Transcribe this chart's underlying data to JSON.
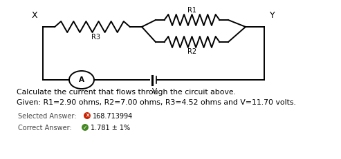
{
  "bg_color": "#ffffff",
  "text_color": "#000000",
  "line1": "Calculate the current that flows through the circuit above.",
  "line2": "Given: R1=2.90 ohms, R2=7.00 ohms, R3=4.52 ohms and V=11.70 volts.",
  "label_selected": "Selected Answer:",
  "label_correct": "Correct Answer:",
  "selected_value": "168.713994",
  "correct_value": "1.781 ± 1%",
  "label_x": "X",
  "label_y": "Y",
  "label_r1": "R1",
  "label_r2": "R2",
  "label_r3": "R3",
  "label_a": "A",
  "label_v": "V",
  "icon_wrong": "#cc2200",
  "icon_correct": "#448822"
}
